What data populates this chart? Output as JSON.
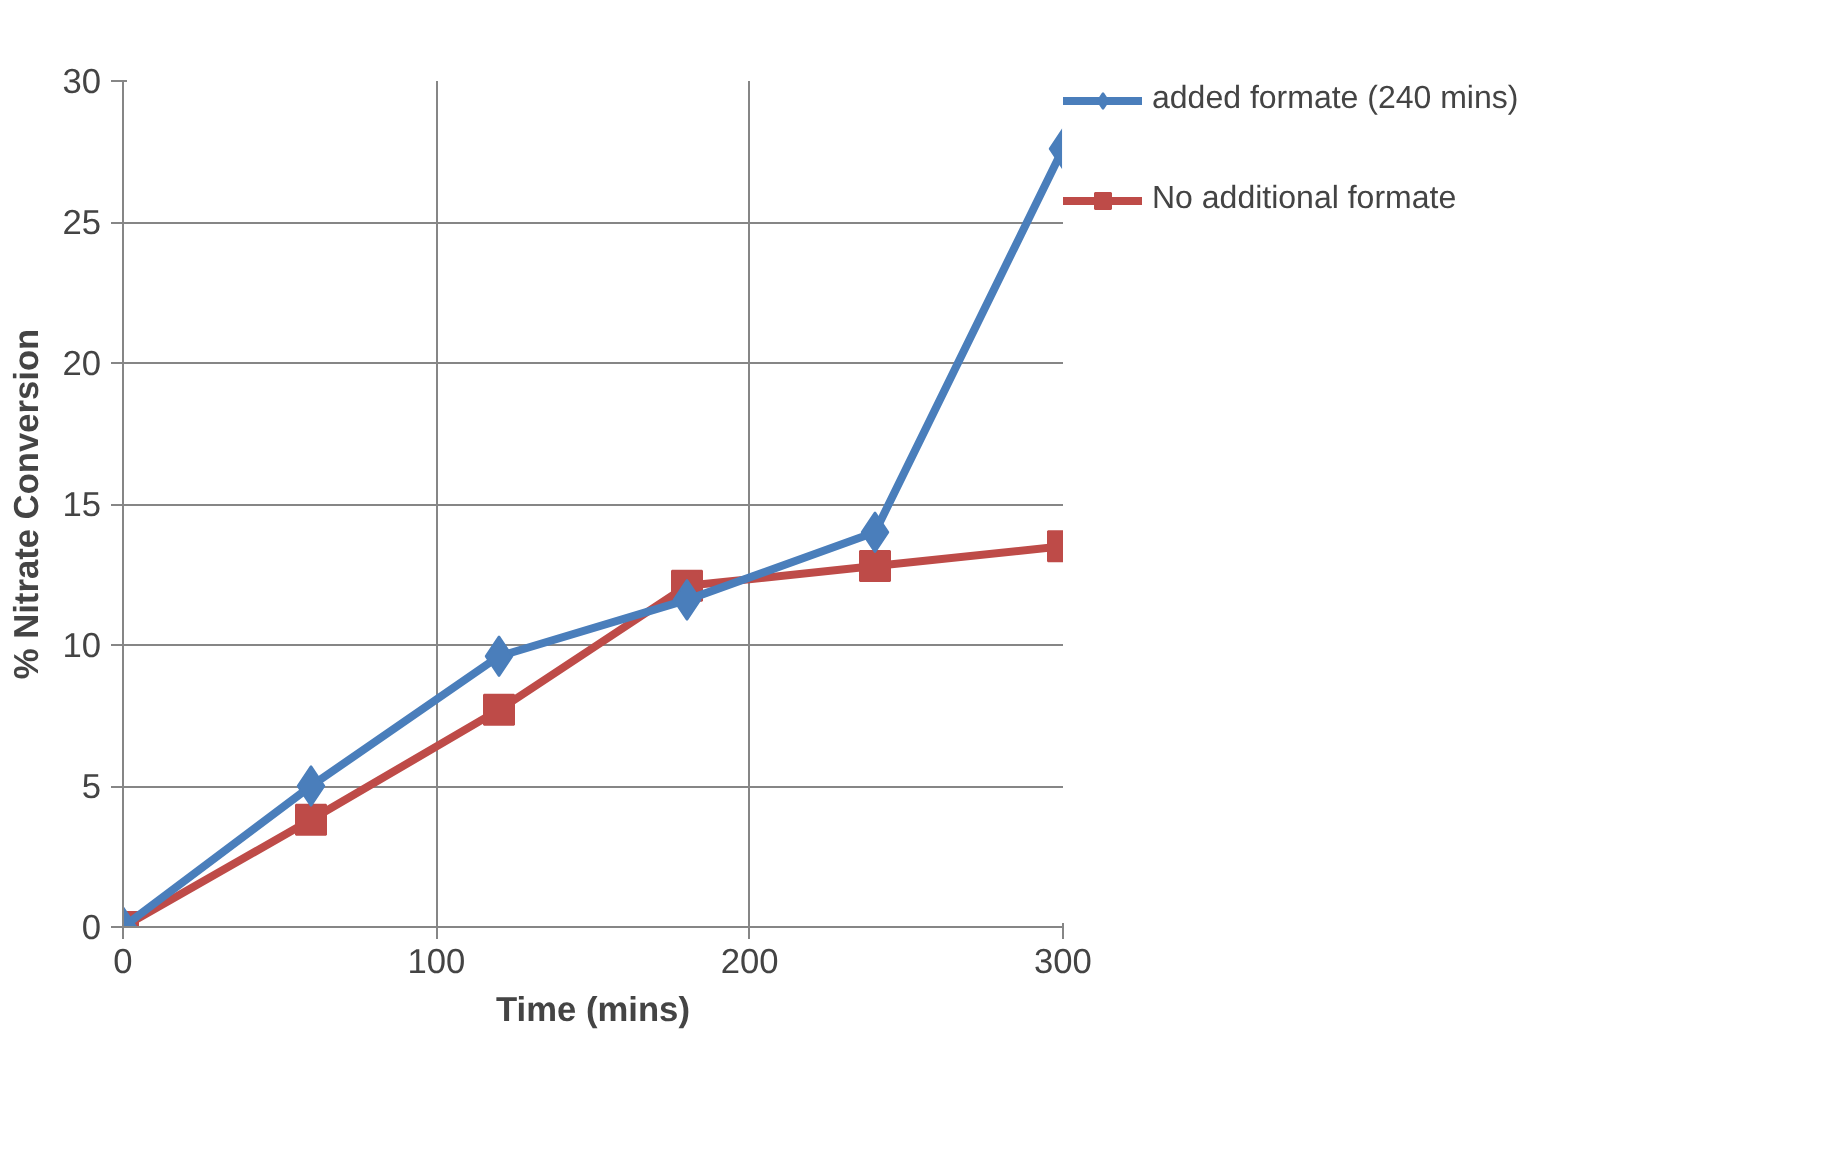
{
  "chart_data": {
    "type": "line",
    "xlabel": "Time (mins)",
    "ylabel": "% Nitrate Conversion",
    "x": [
      0,
      60,
      120,
      180,
      240,
      300
    ],
    "series": [
      {
        "name": "added formate (240 mins)",
        "color": "#4a7ebb",
        "marker": "diamond",
        "values": [
          0,
          5.0,
          9.6,
          11.6,
          14.0,
          27.6
        ]
      },
      {
        "name": "No additional formate",
        "color": "#be4b48",
        "marker": "square",
        "values": [
          0,
          3.8,
          7.7,
          12.1,
          12.8,
          13.5
        ]
      }
    ],
    "xlim": [
      0,
      300
    ],
    "xticks": [
      0,
      100,
      200,
      300
    ],
    "ylim": [
      0,
      30
    ],
    "yticks": [
      0,
      5,
      10,
      15,
      20,
      25,
      30
    ],
    "grid": true,
    "legend": "right",
    "line_style": "solid"
  }
}
